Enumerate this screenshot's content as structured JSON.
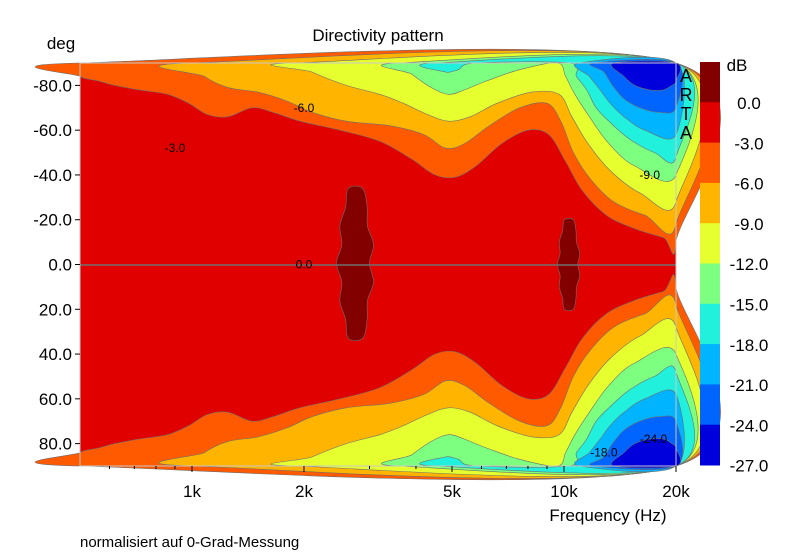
{
  "chart_data": {
    "type": "heatmap",
    "subtype": "contour",
    "title": "Directivity pattern",
    "xlabel": "Frequency (Hz)",
    "ylabel": "deg",
    "x_scale": "log",
    "xlim": [
      500,
      20000
    ],
    "ylim": [
      -90,
      90
    ],
    "x_ticks": [
      {
        "value": 1000,
        "label": "1k"
      },
      {
        "value": 2000,
        "label": "2k"
      },
      {
        "value": 5000,
        "label": "5k"
      },
      {
        "value": 10000,
        "label": "10k"
      },
      {
        "value": 20000,
        "label": "20k"
      }
    ],
    "y_ticks": [
      {
        "value": -80,
        "label": "-80.0"
      },
      {
        "value": -60,
        "label": "-60.0"
      },
      {
        "value": -40,
        "label": "-40.0"
      },
      {
        "value": -20,
        "label": "-20.0"
      },
      {
        "value": 0,
        "label": "0.0"
      },
      {
        "value": 20,
        "label": "20.0"
      },
      {
        "value": 40,
        "label": "40.0"
      },
      {
        "value": 60,
        "label": "60.0"
      },
      {
        "value": 80,
        "label": "80.0"
      }
    ],
    "colorbar": {
      "unit": "dB",
      "levels": [
        {
          "label": "0.0",
          "color": "#820000"
        },
        {
          "label": "-3.0",
          "color": "#e00000"
        },
        {
          "label": "-6.0",
          "color": "#ff5a00"
        },
        {
          "label": "-9.0",
          "color": "#ffb400"
        },
        {
          "label": "-12.0",
          "color": "#e6ff2e"
        },
        {
          "label": "-15.0",
          "color": "#7dff80"
        },
        {
          "label": "-18.0",
          "color": "#20f0dc"
        },
        {
          "label": "-21.0",
          "color": "#00b4ff"
        },
        {
          "label": "-24.0",
          "color": "#0064ff"
        },
        {
          "label": "-27.0",
          "color": "#0000dc"
        }
      ]
    },
    "contour_labels": [
      {
        "text": "-3.0",
        "freq": 900,
        "angle": -52
      },
      {
        "text": "-6.0",
        "freq": 2000,
        "angle": -70
      },
      {
        "text": "0.0",
        "freq": 2000,
        "angle": 0
      },
      {
        "text": "-9.0",
        "freq": 17000,
        "angle": -40
      },
      {
        "text": "-18.0",
        "freq": 12800,
        "angle": 84
      },
      {
        "text": "-24.0",
        "freq": 17400,
        "angle": 78
      }
    ],
    "contours_half": [
      {
        "level": -27,
        "color": "#0000dc",
        "points": [
          [
            13600,
            90
          ],
          [
            14500,
            84
          ],
          [
            15500,
            80
          ],
          [
            17000,
            78
          ],
          [
            18500,
            78
          ],
          [
            19500,
            80
          ],
          [
            20000,
            82
          ],
          [
            20000,
            90
          ]
        ]
      },
      {
        "level": -24,
        "color": "#0064ff",
        "points": [
          [
            12000,
            90
          ],
          [
            12800,
            86
          ],
          [
            13500,
            80
          ],
          [
            14500,
            74
          ],
          [
            16000,
            70
          ],
          [
            18000,
            68
          ],
          [
            20000,
            70
          ],
          [
            20000,
            90
          ]
        ]
      },
      {
        "level": -21,
        "color": "#00b4ff",
        "points": [
          [
            11000,
            90
          ],
          [
            11700,
            84
          ],
          [
            12500,
            78
          ],
          [
            13300,
            72
          ],
          [
            14500,
            66
          ],
          [
            16500,
            60
          ],
          [
            20000,
            58
          ],
          [
            20000,
            90
          ]
        ]
      },
      {
        "level": -18,
        "color": "#20f0dc",
        "points": [
          [
            4500,
            90
          ],
          [
            4800,
            86
          ],
          [
            5200,
            87
          ],
          [
            5800,
            90
          ],
          [
            10300,
            90
          ],
          [
            10800,
            84
          ],
          [
            11500,
            78
          ],
          [
            12200,
            70
          ],
          [
            13200,
            64
          ],
          [
            15000,
            56
          ],
          [
            17500,
            50
          ],
          [
            20000,
            48
          ],
          [
            20000,
            90
          ]
        ]
      },
      {
        "level": -15,
        "color": "#7dff80",
        "points": [
          [
            3600,
            90
          ],
          [
            3900,
            85
          ],
          [
            4400,
            79
          ],
          [
            4900,
            76
          ],
          [
            5400,
            78
          ],
          [
            6200,
            82
          ],
          [
            7600,
            87
          ],
          [
            9600,
            90
          ],
          [
            10100,
            84
          ],
          [
            10700,
            76
          ],
          [
            11700,
            66
          ],
          [
            13200,
            54
          ],
          [
            15500,
            44
          ],
          [
            20000,
            40
          ],
          [
            20000,
            90
          ]
        ]
      },
      {
        "level": -12,
        "color": "#e6ff2e",
        "points": [
          [
            1900,
            90
          ],
          [
            2100,
            86
          ],
          [
            2600,
            80
          ],
          [
            3200,
            76
          ],
          [
            3700,
            72
          ],
          [
            4300,
            67
          ],
          [
            4900,
            64
          ],
          [
            5600,
            66
          ],
          [
            6600,
            72
          ],
          [
            8200,
            77
          ],
          [
            9700,
            76
          ],
          [
            10500,
            66
          ],
          [
            11600,
            54
          ],
          [
            13300,
            42
          ],
          [
            16000,
            32
          ],
          [
            20000,
            28
          ],
          [
            20000,
            90
          ]
        ]
      },
      {
        "level": -9,
        "color": "#ffb400",
        "points": [
          [
            1000,
            90
          ],
          [
            1080,
            84
          ],
          [
            1250,
            79
          ],
          [
            1500,
            77
          ],
          [
            1800,
            73
          ],
          [
            2100,
            68
          ],
          [
            2600,
            64
          ],
          [
            3400,
            62
          ],
          [
            4200,
            58
          ],
          [
            4800,
            52
          ],
          [
            5400,
            54
          ],
          [
            6300,
            62
          ],
          [
            7600,
            70
          ],
          [
            9000,
            72
          ],
          [
            9800,
            64
          ],
          [
            10600,
            50
          ],
          [
            11800,
            38
          ],
          [
            13600,
            28
          ],
          [
            16500,
            22
          ],
          [
            20000,
            18
          ],
          [
            20000,
            90
          ]
        ]
      },
      {
        "level": -6,
        "color": "#ff5a00",
        "points": [
          [
            500,
            84
          ],
          [
            560,
            82
          ],
          [
            620,
            80
          ],
          [
            720,
            78
          ],
          [
            860,
            76
          ],
          [
            980,
            72
          ],
          [
            1100,
            67
          ],
          [
            1250,
            66
          ],
          [
            1450,
            70
          ],
          [
            1650,
            68
          ],
          [
            1950,
            64
          ],
          [
            2500,
            60
          ],
          [
            3200,
            55
          ],
          [
            3900,
            47
          ],
          [
            4500,
            40
          ],
          [
            5100,
            39
          ],
          [
            5800,
            44
          ],
          [
            6800,
            54
          ],
          [
            8000,
            60
          ],
          [
            9100,
            58
          ],
          [
            10100,
            46
          ],
          [
            11200,
            33
          ],
          [
            13000,
            22
          ],
          [
            15500,
            16
          ],
          [
            18500,
            12
          ],
          [
            20000,
            10
          ],
          [
            20000,
            90
          ],
          [
            500,
            90
          ]
        ]
      }
    ],
    "lobes": [
      {
        "level": 0,
        "color": "#820000",
        "freq": 2750,
        "angle_min": -34,
        "angle_max": 33
      },
      {
        "level": 0,
        "color": "#820000",
        "freq": 10300,
        "angle_min": -20,
        "angle_max": 20
      }
    ],
    "footnote": "normalisiert auf 0-Grad-Messung",
    "watermark": "ARTA"
  }
}
